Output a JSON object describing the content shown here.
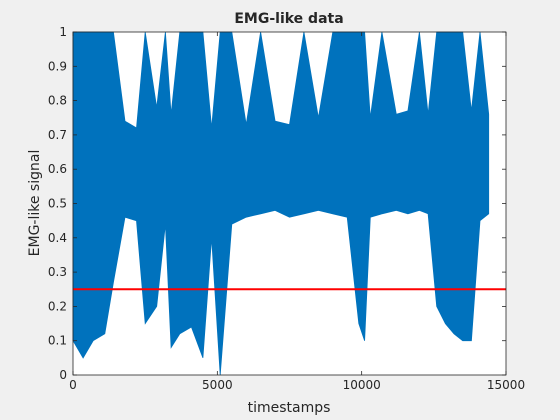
{
  "chart_data": {
    "type": "line",
    "title": "EMG-like data",
    "xlabel": "timestamps",
    "ylabel": "EMG-like signal",
    "xlim": [
      0,
      15000
    ],
    "ylim": [
      0,
      1
    ],
    "xticks": [
      0,
      5000,
      10000,
      15000
    ],
    "xtick_labels": [
      "0",
      "5000",
      "10000",
      "15000"
    ],
    "yticks": [
      0,
      0.1,
      0.2,
      0.3,
      0.4,
      0.5,
      0.6,
      0.7,
      0.8,
      0.9,
      1
    ],
    "ytick_labels": [
      "0",
      "0.1",
      "0.2",
      "0.3",
      "0.4",
      "0.5",
      "0.6",
      "0.7",
      "0.8",
      "0.9",
      "1"
    ],
    "grid": false,
    "series": [
      {
        "color": "#0072bd",
        "x": [
          0,
          350,
          700,
          1100,
          1400,
          1800,
          2200,
          2500,
          2900,
          3200,
          3400,
          3700,
          4100,
          4500,
          4800,
          5100,
          5500,
          6000,
          6500,
          7000,
          7500,
          8000,
          8500,
          9000,
          9500,
          9900,
          10100,
          10300,
          10700,
          11200,
          11600,
          12000,
          12300,
          12600,
          12900,
          13200,
          13500,
          13800,
          14100,
          14400
        ],
        "upper": [
          1,
          1,
          1,
          1,
          1,
          0.74,
          0.72,
          1,
          0.78,
          1,
          0.76,
          1,
          1,
          1,
          0.72,
          1,
          1,
          0.73,
          1,
          0.74,
          0.73,
          1,
          0.75,
          1,
          1,
          1,
          1,
          0.75,
          1,
          0.76,
          0.77,
          1,
          0.76,
          1,
          1,
          1,
          1,
          0.77,
          1,
          0.76
        ],
        "lower": [
          0.1,
          0.05,
          0.1,
          0.12,
          0.27,
          0.46,
          0.45,
          0.15,
          0.2,
          0.44,
          0.08,
          0.12,
          0.14,
          0.05,
          0.4,
          0.0,
          0.44,
          0.46,
          0.47,
          0.48,
          0.46,
          0.47,
          0.48,
          0.47,
          0.46,
          0.15,
          0.1,
          0.46,
          0.47,
          0.48,
          0.47,
          0.48,
          0.47,
          0.2,
          0.15,
          0.12,
          0.1,
          0.1,
          0.45,
          0.47
        ]
      },
      {
        "color": "#ff0000",
        "x": [
          0,
          15000
        ],
        "y": [
          0.25,
          0.25
        ]
      }
    ]
  }
}
